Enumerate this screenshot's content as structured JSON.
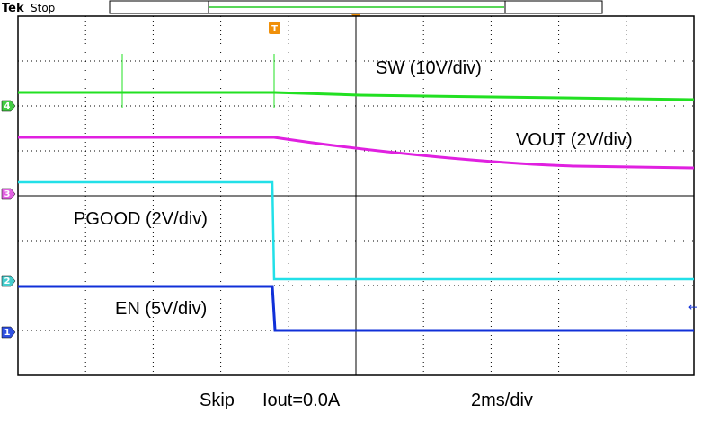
{
  "header": {
    "brand": "Tek",
    "status": "Stop"
  },
  "trigger": {
    "marker": "T"
  },
  "channels": [
    {
      "number": "4",
      "label": "SW (10V/div)"
    },
    {
      "number": "3",
      "label": "VOUT (2V/div)"
    },
    {
      "number": "2",
      "label": "PGOOD (2V/div)"
    },
    {
      "number": "1",
      "label": "EN (5V/div)"
    }
  ],
  "footer": {
    "mode": "Skip",
    "load": "Iout=0.0A",
    "timebase": "2ms/div"
  }
}
